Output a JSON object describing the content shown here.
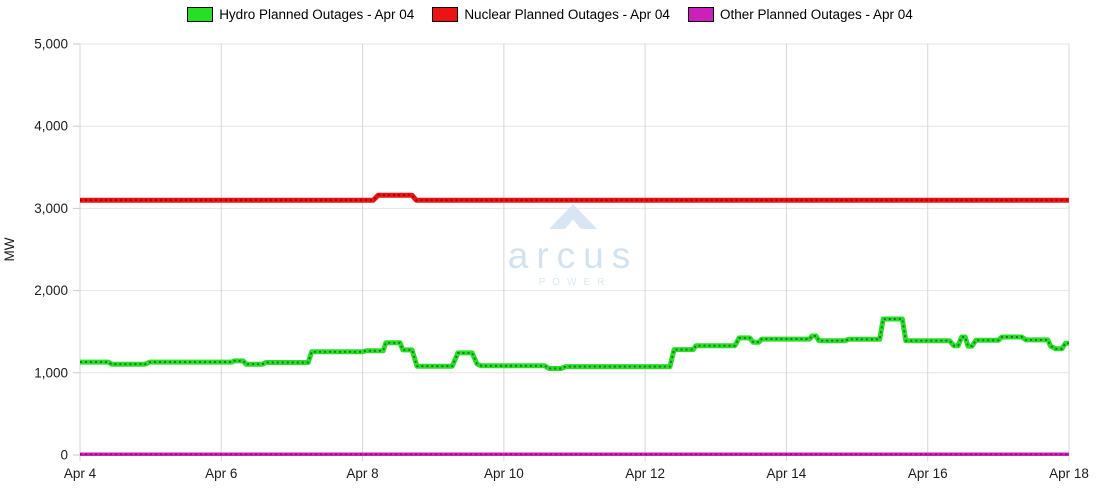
{
  "legend": {
    "items": [
      {
        "label": "Hydro Planned Outages - Apr 04",
        "color": "#25e025"
      },
      {
        "label": "Nuclear Planned Outages - Apr 04",
        "color": "#ee1313"
      },
      {
        "label": "Other Planned Outages - Apr 04",
        "color": "#cc1fbc"
      }
    ]
  },
  "watermark": {
    "brand": "arcus",
    "sub": "POWER"
  },
  "chart_data": {
    "type": "line",
    "title": "",
    "xlabel": "",
    "ylabel": "MW",
    "x_unit": "days since Apr 4",
    "xlim": [
      0,
      14
    ],
    "ylim": [
      0,
      5000
    ],
    "grid": true,
    "legend_position": "top",
    "x_ticks": [
      0,
      2,
      4,
      6,
      8,
      10,
      12,
      14
    ],
    "x_tick_labels": [
      "Apr 4",
      "Apr 6",
      "Apr 8",
      "Apr 10",
      "Apr 12",
      "Apr 14",
      "Apr 16",
      "Apr 18"
    ],
    "y_ticks": [
      0,
      1000,
      2000,
      3000,
      4000,
      5000
    ],
    "y_tick_labels": [
      "0",
      "1,000",
      "2,000",
      "3,000",
      "4,000",
      "5,000"
    ],
    "series": [
      {
        "name": "Hydro Planned Outages - Apr 04",
        "color": "#25e025",
        "dot_color": "#2b6b2b",
        "width": 5,
        "points": [
          [
            0,
            1130
          ],
          [
            0.4,
            1130
          ],
          [
            0.45,
            1105
          ],
          [
            0.92,
            1105
          ],
          [
            0.99,
            1130
          ],
          [
            2.15,
            1130
          ],
          [
            2.18,
            1145
          ],
          [
            2.31,
            1145
          ],
          [
            2.35,
            1105
          ],
          [
            2.58,
            1105
          ],
          [
            2.63,
            1125
          ],
          [
            3.23,
            1125
          ],
          [
            3.28,
            1255
          ],
          [
            3.99,
            1255
          ],
          [
            4.05,
            1268
          ],
          [
            4.29,
            1268
          ],
          [
            4.33,
            1365
          ],
          [
            4.53,
            1365
          ],
          [
            4.57,
            1278
          ],
          [
            4.7,
            1278
          ],
          [
            4.77,
            1080
          ],
          [
            5.27,
            1080
          ],
          [
            5.35,
            1242
          ],
          [
            5.55,
            1242
          ],
          [
            5.62,
            1108
          ],
          [
            5.68,
            1085
          ],
          [
            6.58,
            1085
          ],
          [
            6.64,
            1052
          ],
          [
            6.81,
            1052
          ],
          [
            6.88,
            1075
          ],
          [
            8.35,
            1075
          ],
          [
            8.41,
            1282
          ],
          [
            8.68,
            1282
          ],
          [
            8.72,
            1330
          ],
          [
            9.27,
            1330
          ],
          [
            9.33,
            1425
          ],
          [
            9.48,
            1425
          ],
          [
            9.53,
            1372
          ],
          [
            9.61,
            1372
          ],
          [
            9.65,
            1410
          ],
          [
            10.33,
            1410
          ],
          [
            10.36,
            1448
          ],
          [
            10.42,
            1448
          ],
          [
            10.46,
            1390
          ],
          [
            10.83,
            1390
          ],
          [
            10.88,
            1408
          ],
          [
            11.32,
            1408
          ],
          [
            11.37,
            1655
          ],
          [
            11.64,
            1655
          ],
          [
            11.69,
            1390
          ],
          [
            12.31,
            1390
          ],
          [
            12.37,
            1330
          ],
          [
            12.43,
            1330
          ],
          [
            12.48,
            1435
          ],
          [
            12.53,
            1435
          ],
          [
            12.57,
            1325
          ],
          [
            12.63,
            1325
          ],
          [
            12.68,
            1395
          ],
          [
            13.0,
            1395
          ],
          [
            13.05,
            1435
          ],
          [
            13.33,
            1435
          ],
          [
            13.39,
            1400
          ],
          [
            13.7,
            1400
          ],
          [
            13.74,
            1325
          ],
          [
            13.81,
            1292
          ],
          [
            13.9,
            1292
          ],
          [
            13.95,
            1360
          ],
          [
            14,
            1360
          ]
        ]
      },
      {
        "name": "Nuclear Planned Outages - Apr 04",
        "color": "#ee1313",
        "dot_color": "#990000",
        "width": 5,
        "points": [
          [
            0,
            3100
          ],
          [
            4.15,
            3100
          ],
          [
            4.22,
            3160
          ],
          [
            4.7,
            3160
          ],
          [
            4.76,
            3100
          ],
          [
            14,
            3100
          ]
        ]
      },
      {
        "name": "Other Planned Outages - Apr 04",
        "color": "#cc1fbc",
        "dot_color": "#771069",
        "width": 3.5,
        "points": [
          [
            0,
            10
          ],
          [
            14,
            10
          ]
        ]
      }
    ]
  }
}
